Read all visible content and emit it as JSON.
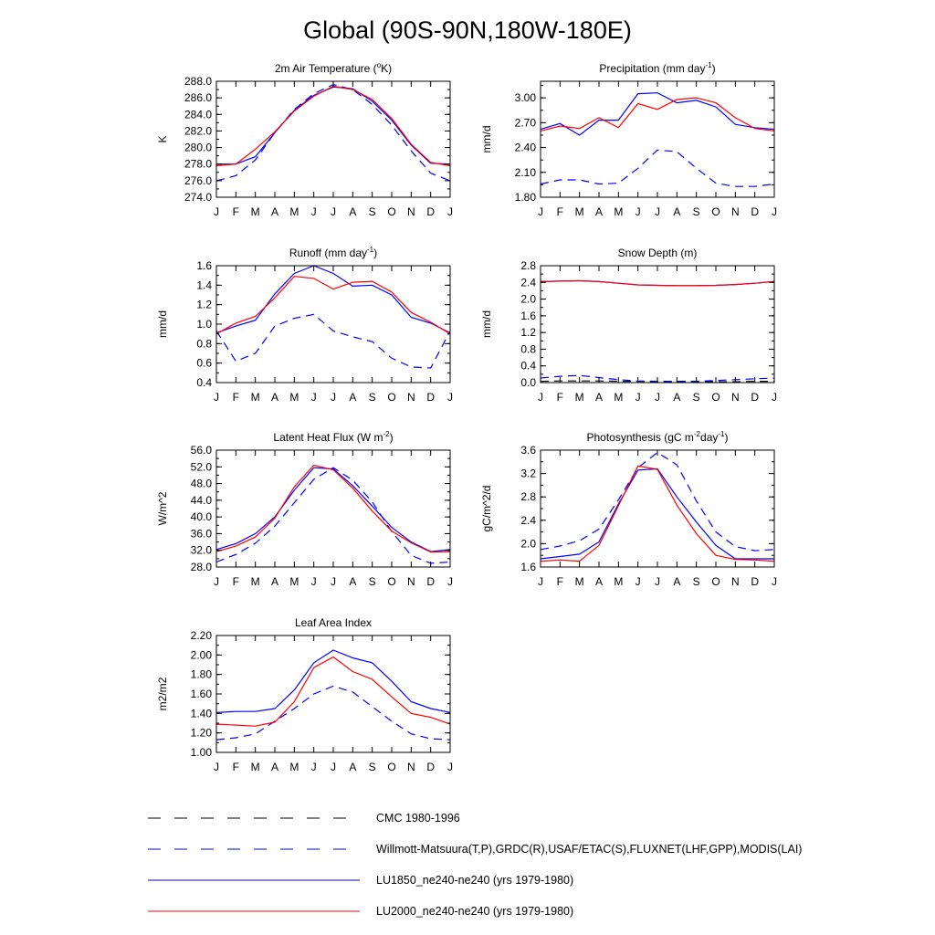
{
  "title": "Global (90S-90N,180W-180E)",
  "months": [
    "J",
    "F",
    "M",
    "A",
    "M",
    "J",
    "J",
    "A",
    "S",
    "O",
    "N",
    "D",
    "J"
  ],
  "legend": [
    {
      "label": "CMC 1980-1996",
      "color": "#000000",
      "dash": "long"
    },
    {
      "label": "Willmott-Matsuura(T,P),GRDC(R),USAF/ETAC(S),FLUXNET(LHF,GPP),MODIS(LAI)",
      "color": "#0000ff",
      "dash": "long"
    },
    {
      "label": "LU1850_ne240-ne240 (yrs 1979-1980)",
      "color": "#0000ff",
      "dash": "solid"
    },
    {
      "label": "LU2000_ne240-ne240 (yrs 1979-1980)",
      "color": "#ff0000",
      "dash": "solid"
    }
  ],
  "chart_data": [
    {
      "type": "line",
      "title": "2m Air Temperature (°K)",
      "title_parts": [
        "2m Air Temperature (",
        "o",
        "K)"
      ],
      "ylabel": "K",
      "ylim": [
        274.0,
        288.0
      ],
      "yticks": [
        "274.0",
        "276.0",
        "278.0",
        "280.0",
        "282.0",
        "284.0",
        "286.0",
        "288.0"
      ],
      "ytick_values": [
        274,
        276,
        278,
        280,
        282,
        284,
        286,
        288
      ],
      "series": [
        {
          "values": [
            276.0,
            276.6,
            278.5,
            281.8,
            284.6,
            286.5,
            287.6,
            287.0,
            285.2,
            282.7,
            279.6,
            276.9,
            276.0
          ],
          "color": "#0000ff",
          "dash": "dashed"
        },
        {
          "values": [
            278.0,
            278.0,
            278.9,
            281.8,
            284.5,
            286.3,
            287.3,
            287.1,
            285.6,
            283.3,
            280.3,
            278.1,
            278.0
          ],
          "color": "#0000ff",
          "dash": "solid"
        },
        {
          "values": [
            277.8,
            278.0,
            279.8,
            281.9,
            284.4,
            286.2,
            287.4,
            287.0,
            285.8,
            283.5,
            280.4,
            278.2,
            277.8
          ],
          "color": "#ff0000",
          "dash": "solid"
        }
      ]
    },
    {
      "type": "line",
      "title": "Precipitation (mm day-1)",
      "title_parts": [
        "Precipitation (mm day",
        "-1",
        ")"
      ],
      "ylabel": "mm/d",
      "ylim": [
        1.8,
        3.2
      ],
      "yticks": [
        "1.80",
        "2.10",
        "2.40",
        "2.70",
        "3.00"
      ],
      "ytick_values": [
        1.8,
        2.1,
        2.4,
        2.7,
        3.0
      ],
      "series": [
        {
          "values": [
            1.96,
            2.01,
            2.01,
            1.96,
            1.97,
            2.15,
            2.37,
            2.35,
            2.15,
            1.97,
            1.93,
            1.93,
            1.96
          ],
          "color": "#0000ff",
          "dash": "dashed"
        },
        {
          "values": [
            2.62,
            2.69,
            2.55,
            2.73,
            2.73,
            3.05,
            3.06,
            2.94,
            2.97,
            2.89,
            2.68,
            2.64,
            2.62
          ],
          "color": "#0000ff",
          "dash": "solid"
        },
        {
          "values": [
            2.6,
            2.66,
            2.63,
            2.76,
            2.64,
            2.93,
            2.86,
            2.98,
            3.0,
            2.94,
            2.76,
            2.63,
            2.6
          ],
          "color": "#ff0000",
          "dash": "solid"
        }
      ]
    },
    {
      "type": "line",
      "title": "Runoff (mm day-1)",
      "title_parts": [
        "Runoff (mm day",
        "-1",
        ")"
      ],
      "ylabel": "mm/d",
      "ylim": [
        0.4,
        1.6
      ],
      "yticks": [
        "0.4",
        "0.6",
        "0.8",
        "1.0",
        "1.2",
        "1.4",
        "1.6"
      ],
      "ytick_values": [
        0.4,
        0.6,
        0.8,
        1.0,
        1.2,
        1.4,
        1.6
      ],
      "series": [
        {
          "values": [
            0.93,
            0.62,
            0.7,
            0.98,
            1.06,
            1.1,
            0.93,
            0.87,
            0.82,
            0.65,
            0.56,
            0.55,
            0.93
          ],
          "color": "#0000ff",
          "dash": "dashed"
        },
        {
          "values": [
            0.91,
            0.98,
            1.04,
            1.31,
            1.52,
            1.6,
            1.52,
            1.39,
            1.4,
            1.3,
            1.07,
            1.01,
            0.91
          ],
          "color": "#0000ff",
          "dash": "solid"
        },
        {
          "values": [
            0.9,
            1.01,
            1.08,
            1.27,
            1.49,
            1.47,
            1.36,
            1.43,
            1.44,
            1.33,
            1.12,
            1.02,
            0.9
          ],
          "color": "#ff0000",
          "dash": "solid"
        }
      ]
    },
    {
      "type": "line",
      "title": "Snow Depth (m)",
      "title_parts": [
        "Snow Depth (m)"
      ],
      "ylabel": "mm/d",
      "ylim": [
        0.0,
        2.8
      ],
      "yticks": [
        "0.0",
        "0.4",
        "0.8",
        "1.2",
        "1.6",
        "2.0",
        "2.4",
        "2.8"
      ],
      "ytick_values": [
        0,
        0.4,
        0.8,
        1.2,
        1.6,
        2.0,
        2.4,
        2.8
      ],
      "series": [
        {
          "values": [
            0.03,
            0.04,
            0.04,
            0.04,
            0.03,
            0.03,
            0.02,
            0.02,
            0.02,
            0.02,
            0.02,
            0.03,
            0.03
          ],
          "color": "#000000",
          "dash": "dashed"
        },
        {
          "values": [
            0.11,
            0.15,
            0.17,
            0.12,
            0.07,
            0.04,
            0.03,
            0.03,
            0.03,
            0.05,
            0.07,
            0.09,
            0.11
          ],
          "color": "#0000ff",
          "dash": "dashed"
        },
        {
          "values": [
            2.42,
            2.43,
            2.44,
            2.42,
            2.38,
            2.34,
            2.33,
            2.32,
            2.32,
            2.33,
            2.35,
            2.38,
            2.42
          ],
          "color": "#0000ff",
          "dash": "solid"
        },
        {
          "values": [
            2.42,
            2.43,
            2.44,
            2.42,
            2.38,
            2.34,
            2.33,
            2.32,
            2.32,
            2.33,
            2.35,
            2.38,
            2.42
          ],
          "color": "#ff0000",
          "dash": "solid"
        }
      ]
    },
    {
      "type": "line",
      "title": "Latent Heat Flux (W m-2)",
      "title_parts": [
        "Latent Heat Flux (W m",
        "-2",
        ")"
      ],
      "ylabel": "W/m^2",
      "ylim": [
        28.0,
        56.0
      ],
      "yticks": [
        "28.0",
        "32.0",
        "36.0",
        "40.0",
        "44.0",
        "48.0",
        "52.0",
        "56.0"
      ],
      "ytick_values": [
        28,
        32,
        36,
        40,
        44,
        48,
        52,
        56
      ],
      "series": [
        {
          "values": [
            29.2,
            31.0,
            33.7,
            37.8,
            43.4,
            49.0,
            51.8,
            48.8,
            43.6,
            36.5,
            30.8,
            28.9,
            29.2
          ],
          "color": "#0000ff",
          "dash": "dashed"
        },
        {
          "values": [
            32.2,
            33.6,
            36.0,
            40.0,
            46.4,
            51.8,
            51.5,
            47.5,
            42.6,
            37.5,
            34.0,
            31.7,
            32.2
          ],
          "color": "#0000ff",
          "dash": "solid"
        },
        {
          "values": [
            31.7,
            33.0,
            35.2,
            39.7,
            47.2,
            52.4,
            51.3,
            46.9,
            41.4,
            36.6,
            33.8,
            31.6,
            31.7
          ],
          "color": "#ff0000",
          "dash": "solid"
        }
      ]
    },
    {
      "type": "line",
      "title": "Photosynthesis (gC m-2day-1)",
      "title_parts": [
        "Photosynthesis (gC m",
        "-2",
        "day",
        "-1",
        ")"
      ],
      "ylabel": "gC/m^2/d",
      "ylim": [
        1.6,
        3.6
      ],
      "yticks": [
        "1.6",
        "2.0",
        "2.4",
        "2.8",
        "3.2",
        "3.6"
      ],
      "ytick_values": [
        1.6,
        2.0,
        2.4,
        2.8,
        3.2,
        3.6
      ],
      "series": [
        {
          "values": [
            1.9,
            1.96,
            2.05,
            2.25,
            2.75,
            3.3,
            3.56,
            3.35,
            2.73,
            2.2,
            1.95,
            1.88,
            1.9
          ],
          "color": "#0000ff",
          "dash": "dashed"
        },
        {
          "values": [
            1.74,
            1.78,
            1.82,
            2.03,
            2.68,
            3.26,
            3.28,
            2.8,
            2.37,
            1.97,
            1.74,
            1.74,
            1.74
          ],
          "color": "#0000ff",
          "dash": "solid"
        },
        {
          "values": [
            1.7,
            1.72,
            1.7,
            1.97,
            2.65,
            3.33,
            3.27,
            2.66,
            2.17,
            1.8,
            1.73,
            1.72,
            1.7
          ],
          "color": "#ff0000",
          "dash": "solid"
        }
      ]
    },
    {
      "type": "line",
      "title": "Leaf Area Index",
      "title_parts": [
        "Leaf Area Index"
      ],
      "ylabel": "m2/m2",
      "ylim": [
        1.0,
        2.2
      ],
      "yticks": [
        "1.00",
        "1.20",
        "1.40",
        "1.60",
        "1.80",
        "2.00",
        "2.20"
      ],
      "ytick_values": [
        1.0,
        1.2,
        1.4,
        1.6,
        1.8,
        2.0,
        2.2
      ],
      "series": [
        {
          "values": [
            1.13,
            1.15,
            1.19,
            1.32,
            1.45,
            1.6,
            1.68,
            1.62,
            1.47,
            1.32,
            1.19,
            1.14,
            1.13
          ],
          "color": "#0000ff",
          "dash": "dashed"
        },
        {
          "values": [
            1.41,
            1.42,
            1.42,
            1.45,
            1.64,
            1.92,
            2.05,
            1.97,
            1.92,
            1.73,
            1.52,
            1.45,
            1.41
          ],
          "color": "#0000ff",
          "dash": "solid"
        },
        {
          "values": [
            1.29,
            1.28,
            1.27,
            1.31,
            1.52,
            1.87,
            1.98,
            1.83,
            1.75,
            1.57,
            1.4,
            1.36,
            1.29
          ],
          "color": "#ff0000",
          "dash": "solid"
        }
      ]
    }
  ]
}
